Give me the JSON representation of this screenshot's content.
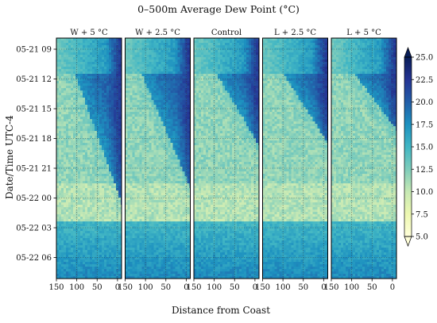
{
  "chart_data": {
    "type": "heatmap",
    "title": "0–500m Average Dew Point (°C)",
    "xlabel": "Distance from Coast",
    "ylabel": "Date/Time UTC-4",
    "panels": [
      {
        "title": "W + 5 °C",
        "front_start": 105,
        "front_slope": 2.2
      },
      {
        "title": "W + 2.5 °C",
        "front_start": 110,
        "front_slope": 2.6
      },
      {
        "title": "Control",
        "front_start": 95,
        "front_slope": 3.6
      },
      {
        "title": "L + 2.5 °C",
        "front_start": 100,
        "front_slope": 3.9
      },
      {
        "title": "L + 5 °C",
        "front_start": 95,
        "front_slope": 4.6
      }
    ],
    "x_ticks": [
      150,
      100,
      50,
      0
    ],
    "xlim": [
      150,
      -10
    ],
    "y_ticks": [
      "05-21 09",
      "05-21 12",
      "05-21 15",
      "05-21 18",
      "05-21 21",
      "05-22 00",
      "05-22 03",
      "05-22 06"
    ],
    "colorbar": {
      "ticks": [
        5.0,
        7.5,
        10.0,
        12.5,
        15.0,
        17.5,
        20.0,
        22.5,
        25.0
      ],
      "tick_labels": [
        "5.0",
        "7.5",
        "10.0",
        "12.5",
        "15.0",
        "17.5",
        "20.0",
        "22.5",
        "25.0"
      ],
      "range": [
        5.0,
        25.0
      ],
      "colormap": "YlGnBu",
      "extend": "both"
    },
    "grid": true
  }
}
